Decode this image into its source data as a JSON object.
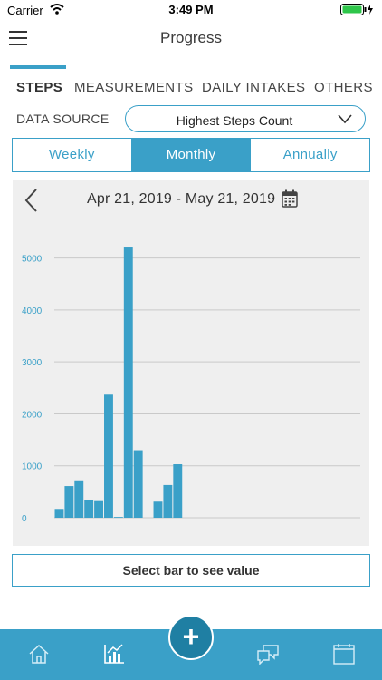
{
  "status_bar": {
    "carrier": "Carrier",
    "time": "3:49 PM"
  },
  "header": {
    "title": "Progress"
  },
  "tabs": [
    "STEPS",
    "MEASUREMENTS",
    "DAILY INTAKES",
    "OTHERS"
  ],
  "data_source": {
    "label": "DATA SOURCE",
    "selected": "Highest Steps Count"
  },
  "period": {
    "options": [
      "Weekly",
      "Monthly",
      "Annually"
    ],
    "selected": "Monthly"
  },
  "date_range": "Apr 21, 2019 - May 21, 2019",
  "chart_data": {
    "type": "bar",
    "ylim": [
      0,
      5500
    ],
    "yticks": [
      0,
      1000,
      2000,
      3000,
      4000,
      5000
    ],
    "grid": true,
    "values": [
      170,
      610,
      720,
      340,
      320,
      2370,
      15,
      5220,
      1300,
      0,
      310,
      630,
      1030,
      0,
      0,
      0,
      0,
      0,
      0,
      0,
      0,
      0,
      0,
      0,
      0,
      0,
      0,
      0,
      0,
      0,
      0
    ]
  },
  "hint": "Select bar to see value",
  "colors": {
    "accent": "#3aa0c8",
    "bar": "#3aa0c8",
    "fab": "#1f7fa3"
  },
  "bottom_nav": {
    "icons": [
      "home-icon",
      "chart-icon",
      "chat-icon",
      "calendar-icon"
    ]
  }
}
